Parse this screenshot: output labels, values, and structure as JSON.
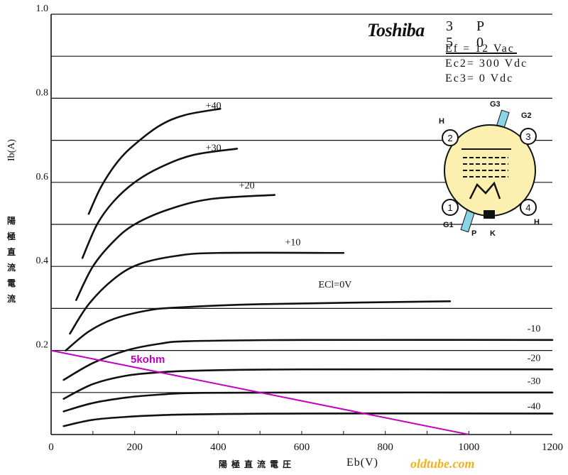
{
  "page": {
    "brand": "Toshiba",
    "tube_type": "3 P 5 0",
    "conditions": [
      "Ef = 12 Vac",
      "Ec2= 300 Vdc",
      "Ec3= 0 Vdc"
    ],
    "y_label_jp": [
      "陽",
      "極",
      "直",
      "流",
      "電",
      "流"
    ],
    "y_label": "Ib(A)",
    "x_label_jp": "陽極直流電圧",
    "x_label": "Eb(V)",
    "watermark": "oldtube.com",
    "load_line_label": "5kohm"
  },
  "colors": {
    "curve": "#111111",
    "grid": "#111111",
    "load_line": "#c000c0",
    "tube_body": "#fbf0b0",
    "tube_accent": "#8ad4e6"
  },
  "diagram": {
    "pins": [
      "1",
      "2",
      "3",
      "4"
    ],
    "labels": [
      "H",
      "G3",
      "G2",
      "H",
      "G1",
      "P",
      "K"
    ]
  },
  "chart_data": {
    "type": "line",
    "title": "",
    "xlabel": "Eb(V)",
    "ylabel": "Ib(A)",
    "xlim": [
      0,
      1200
    ],
    "ylim": [
      0,
      1.0
    ],
    "x_ticks": [
      "0",
      "200",
      "400",
      "600",
      "800",
      "1000",
      "1200"
    ],
    "y_ticks": [
      "0.2",
      "0.4",
      "0.6",
      "0.8",
      "1.0"
    ],
    "grid": "horizontal",
    "series": [
      {
        "name": "+40",
        "label_at": [
          370,
          0.775
        ],
        "points": [
          [
            90,
            0.525
          ],
          [
            120,
            0.59
          ],
          [
            160,
            0.65
          ],
          [
            200,
            0.69
          ],
          [
            260,
            0.735
          ],
          [
            320,
            0.76
          ],
          [
            405,
            0.775
          ]
        ]
      },
      {
        "name": "+30",
        "label_at": [
          370,
          0.675
        ],
        "points": [
          [
            75,
            0.42
          ],
          [
            110,
            0.5
          ],
          [
            150,
            0.555
          ],
          [
            200,
            0.6
          ],
          [
            260,
            0.635
          ],
          [
            340,
            0.665
          ],
          [
            445,
            0.68
          ]
        ]
      },
      {
        "name": "+20",
        "label_at": [
          450,
          0.585
        ],
        "points": [
          [
            60,
            0.32
          ],
          [
            100,
            0.4
          ],
          [
            150,
            0.46
          ],
          [
            200,
            0.5
          ],
          [
            280,
            0.535
          ],
          [
            380,
            0.56
          ],
          [
            535,
            0.57
          ]
        ]
      },
      {
        "name": "+10",
        "label_at": [
          560,
          0.45
        ],
        "points": [
          [
            45,
            0.24
          ],
          [
            90,
            0.31
          ],
          [
            150,
            0.37
          ],
          [
            210,
            0.405
          ],
          [
            300,
            0.425
          ],
          [
            400,
            0.432
          ],
          [
            700,
            0.432
          ]
        ]
      },
      {
        "name": "ECl=0V",
        "label_at": [
          640,
          0.35
        ],
        "points": [
          [
            35,
            0.2
          ],
          [
            90,
            0.245
          ],
          [
            150,
            0.275
          ],
          [
            230,
            0.295
          ],
          [
            300,
            0.302
          ],
          [
            500,
            0.31
          ],
          [
            955,
            0.317
          ]
        ]
      },
      {
        "name": "-10",
        "label_at": [
          1140,
          0.245
        ],
        "points": [
          [
            30,
            0.13
          ],
          [
            100,
            0.17
          ],
          [
            180,
            0.2
          ],
          [
            260,
            0.216
          ],
          [
            330,
            0.222
          ],
          [
            600,
            0.225
          ],
          [
            1200,
            0.225
          ]
        ]
      },
      {
        "name": "-20",
        "label_at": [
          1140,
          0.175
        ],
        "points": [
          [
            30,
            0.085
          ],
          [
            100,
            0.12
          ],
          [
            180,
            0.14
          ],
          [
            260,
            0.148
          ],
          [
            350,
            0.152
          ],
          [
            600,
            0.155
          ],
          [
            1200,
            0.155
          ]
        ]
      },
      {
        "name": "-30",
        "label_at": [
          1140,
          0.12
        ],
        "points": [
          [
            30,
            0.055
          ],
          [
            100,
            0.075
          ],
          [
            180,
            0.088
          ],
          [
            260,
            0.095
          ],
          [
            350,
            0.099
          ],
          [
            600,
            0.1
          ],
          [
            1200,
            0.1
          ]
        ]
      },
      {
        "name": "-40",
        "label_at": [
          1140,
          0.06
        ],
        "points": [
          [
            30,
            0.02
          ],
          [
            100,
            0.035
          ],
          [
            180,
            0.042
          ],
          [
            260,
            0.046
          ],
          [
            350,
            0.048
          ],
          [
            600,
            0.05
          ],
          [
            1200,
            0.05
          ]
        ]
      }
    ],
    "load_line": {
      "name": "5kohm",
      "points": [
        [
          0,
          0.2
        ],
        [
          1000,
          0.0
        ]
      ]
    }
  }
}
